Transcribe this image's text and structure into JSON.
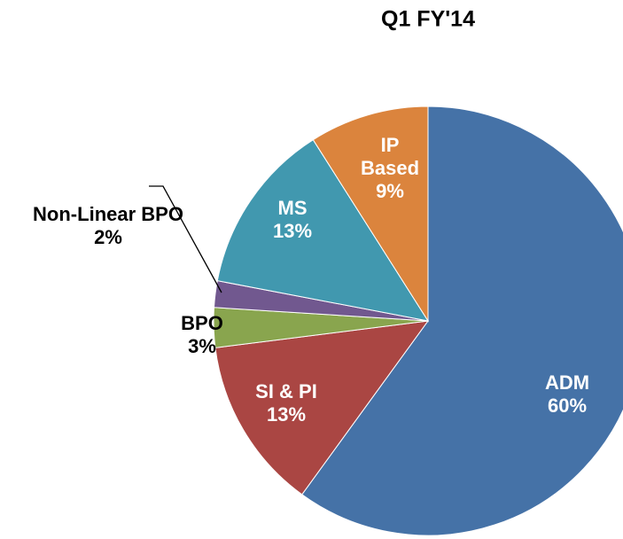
{
  "chart_data": {
    "type": "pie",
    "title": "Q1 FY'14",
    "categories": [
      "ADM",
      "SI & PI",
      "BPO",
      "Non-Linear BPO",
      "MS",
      "IP Based"
    ],
    "values": [
      60,
      13,
      3,
      2,
      13,
      9
    ],
    "value_labels": [
      "60%",
      "13%",
      "3%",
      "2%",
      "13%",
      "9%"
    ],
    "colors": [
      "#4572a7",
      "#aa4643",
      "#89a54e",
      "#71588f",
      "#4198af",
      "#db843d"
    ]
  }
}
